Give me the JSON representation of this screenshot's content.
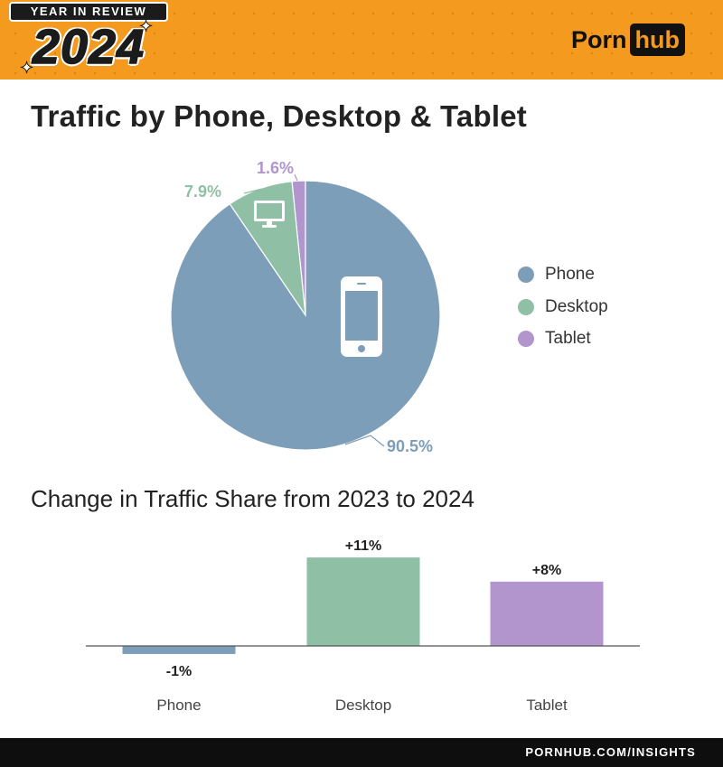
{
  "header": {
    "badge_top": "YEAR IN REVIEW",
    "badge_year": "2024",
    "brand_left": "Porn",
    "brand_right": "hub",
    "background_color": "#f39a1f"
  },
  "title": "Traffic by Phone, Desktop & Tablet",
  "chart_data": [
    {
      "type": "pie",
      "slices": [
        {
          "label": "Phone",
          "value": 90.5,
          "value_label": "90.5%",
          "color": "#7d9eb8",
          "icon": "phone-icon"
        },
        {
          "label": "Desktop",
          "value": 7.9,
          "value_label": "7.9%",
          "color": "#8fbfa5",
          "icon": "monitor-icon"
        },
        {
          "label": "Tablet",
          "value": 1.6,
          "value_label": "1.6%",
          "color": "#b195cc"
        }
      ],
      "legend": {
        "placement": "right",
        "items": [
          {
            "label": "Phone",
            "color": "#7d9eb8"
          },
          {
            "label": "Desktop",
            "color": "#8fbfa5"
          },
          {
            "label": "Tablet",
            "color": "#b195cc"
          }
        ]
      }
    },
    {
      "type": "bar",
      "title": "Change in Traffic Share from 2023 to 2024",
      "categories": [
        "Phone",
        "Desktop",
        "Tablet"
      ],
      "values": [
        -1,
        11,
        8
      ],
      "value_labels": [
        "-1%",
        "+11%",
        "+8%"
      ],
      "colors": [
        "#7d9eb8",
        "#8fbfa5",
        "#b195cc"
      ],
      "ylim": [
        -1,
        11
      ],
      "grid": false
    }
  ],
  "footer": {
    "text": "PORNHUB.COM/INSIGHTS"
  }
}
